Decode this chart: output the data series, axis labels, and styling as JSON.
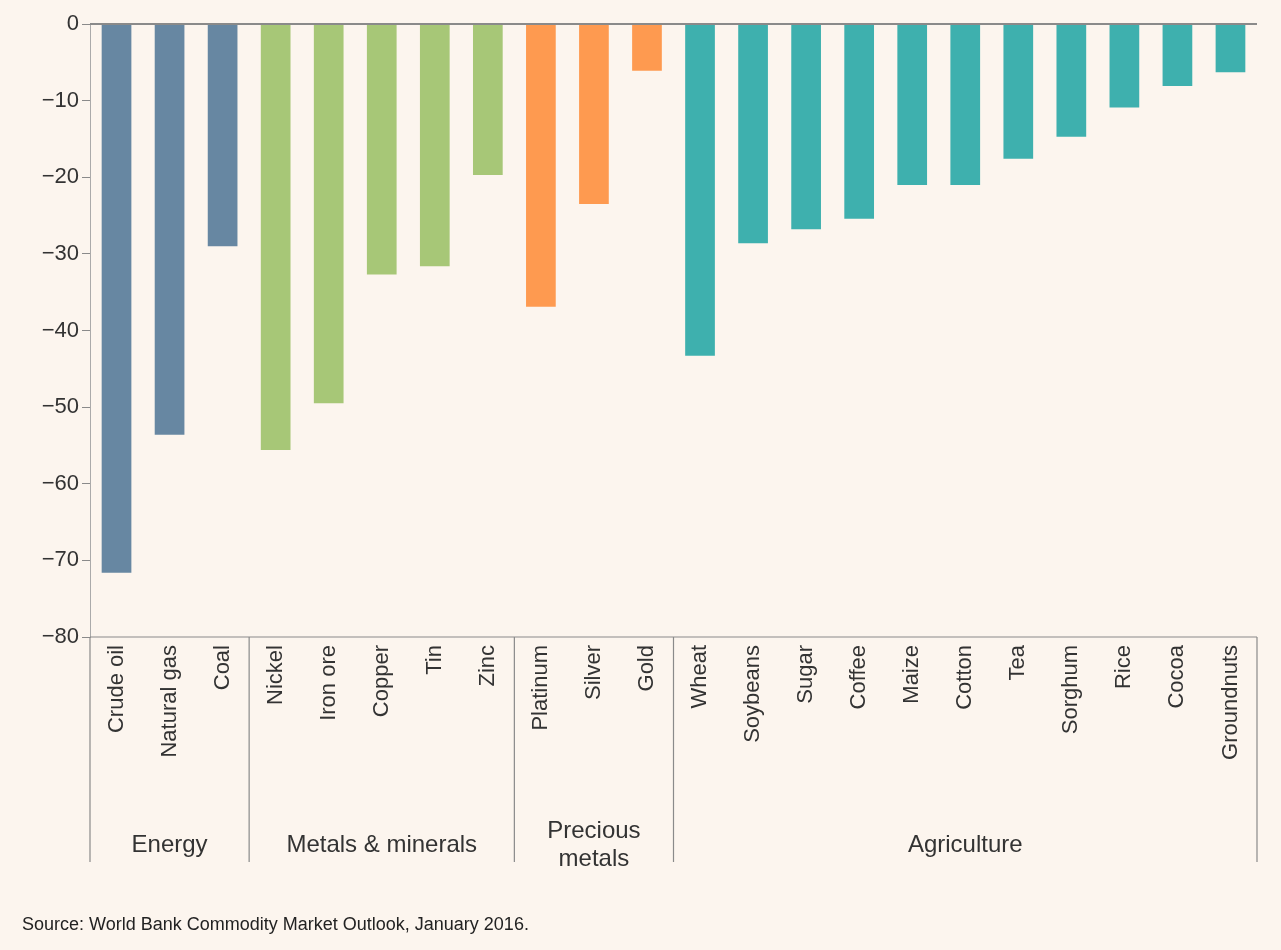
{
  "chart_data": {
    "type": "bar",
    "categories": [
      "Crude oil",
      "Natural gas",
      "Coal",
      "Nickel",
      "Iron ore",
      "Copper",
      "Tin",
      "Zinc",
      "Platinum",
      "Silver",
      "Gold",
      "Wheat",
      "Soybeans",
      "Sugar",
      "Coffee",
      "Maize",
      "Cotton",
      "Tea",
      "Sorghum",
      "Rice",
      "Cocoa",
      "Groundnuts"
    ],
    "values": [
      -71.6,
      -53.6,
      -29.0,
      -55.6,
      -49.5,
      -32.7,
      -31.6,
      -19.7,
      -36.9,
      -23.5,
      -6.1,
      -43.3,
      -28.6,
      -26.8,
      -25.4,
      -21.0,
      -21.0,
      -17.6,
      -14.7,
      -10.9,
      -8.1,
      -6.3
    ],
    "colors": [
      "#6787a2",
      "#6787a2",
      "#6787a2",
      "#a7c777",
      "#a7c777",
      "#a7c777",
      "#a7c777",
      "#a7c777",
      "#fe9a50",
      "#fe9a50",
      "#fe9a50",
      "#3eb0ae",
      "#3eb0ae",
      "#3eb0ae",
      "#3eb0ae",
      "#3eb0ae",
      "#3eb0ae",
      "#3eb0ae",
      "#3eb0ae",
      "#3eb0ae",
      "#3eb0ae",
      "#3eb0ae"
    ],
    "ylim": [
      -80,
      0
    ],
    "yticks": [
      -80,
      -70,
      -60,
      -50,
      -40,
      -30,
      -20,
      -10,
      0
    ],
    "annotations": [
      "Energy",
      "Metals & minerals",
      "Precious metals",
      "Agriculture",
      "Source: World Bank Commodity Market Outlook, January 2016."
    ]
  }
}
